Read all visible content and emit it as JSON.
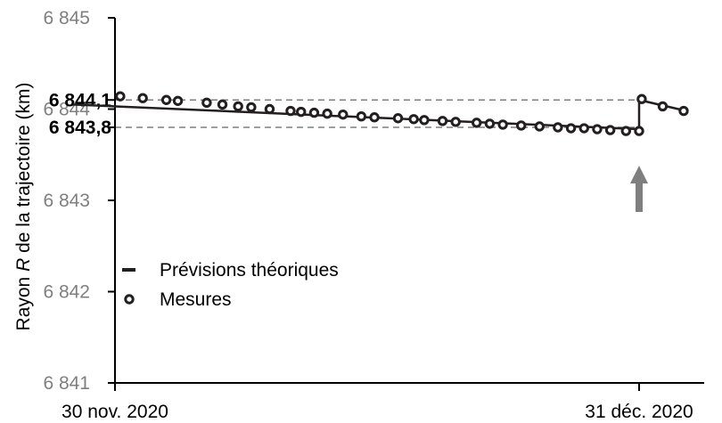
{
  "chart_data": {
    "type": "line",
    "title": "",
    "xlabel": "",
    "ylabel": {
      "prefix": "Rayon ",
      "var": "R",
      "suffix": " de la trajectoire (km)"
    },
    "ylim": [
      6841,
      6845
    ],
    "yticks": [
      {
        "value": 6841,
        "label": "6 841"
      },
      {
        "value": 6842,
        "label": "6 842"
      },
      {
        "value": 6843,
        "label": "6 843"
      },
      {
        "value": 6844,
        "label": "6 844"
      },
      {
        "value": 6845,
        "label": "6 845"
      }
    ],
    "xlim": [
      0,
      1.15
    ],
    "xticks": [
      {
        "value": 0,
        "label": "30 nov. 2020"
      },
      {
        "value": 1,
        "label": "31 déc. 2020"
      }
    ],
    "reference_lines": [
      {
        "value": 6844.1,
        "label": "6 844,1"
      },
      {
        "value": 6843.8,
        "label": "6 843,8"
      }
    ],
    "series": [
      {
        "name": "Prévisions théoriques",
        "style": "line",
        "color": "#231f20",
        "x": [
          -0.08,
          1.0,
          1.0,
          1.09
        ],
        "y": [
          6844.05,
          6843.78,
          6844.1,
          6843.98
        ]
      },
      {
        "name": "Mesures",
        "style": "markers",
        "color": "#231f20",
        "x": [
          0.01,
          0.053,
          0.098,
          0.12,
          0.175,
          0.205,
          0.235,
          0.26,
          0.295,
          0.335,
          0.355,
          0.38,
          0.405,
          0.435,
          0.47,
          0.495,
          0.54,
          0.57,
          0.59,
          0.625,
          0.65,
          0.69,
          0.715,
          0.74,
          0.775,
          0.81,
          0.845,
          0.87,
          0.895,
          0.92,
          0.945,
          0.975,
          1.0,
          1.005,
          1.045,
          1.085
        ],
        "y": [
          6844.14,
          6844.12,
          6844.1,
          6844.09,
          6844.07,
          6844.05,
          6844.03,
          6844.02,
          6844.0,
          6843.98,
          6843.97,
          6843.96,
          6843.95,
          6843.94,
          6843.92,
          6843.91,
          6843.9,
          6843.89,
          6843.88,
          6843.87,
          6843.86,
          6843.85,
          6843.84,
          6843.83,
          6843.82,
          6843.81,
          6843.8,
          6843.79,
          6843.79,
          6843.78,
          6843.77,
          6843.76,
          6843.76,
          6844.11,
          6844.03,
          6843.98
        ]
      }
    ],
    "event_marker": {
      "type": "arrow-up",
      "x": 1.0,
      "color": "#7f7f7f"
    },
    "legend": {
      "placement": "bottom-left",
      "entries": [
        "Prévisions théoriques",
        "Mesures"
      ]
    },
    "grid": false
  }
}
